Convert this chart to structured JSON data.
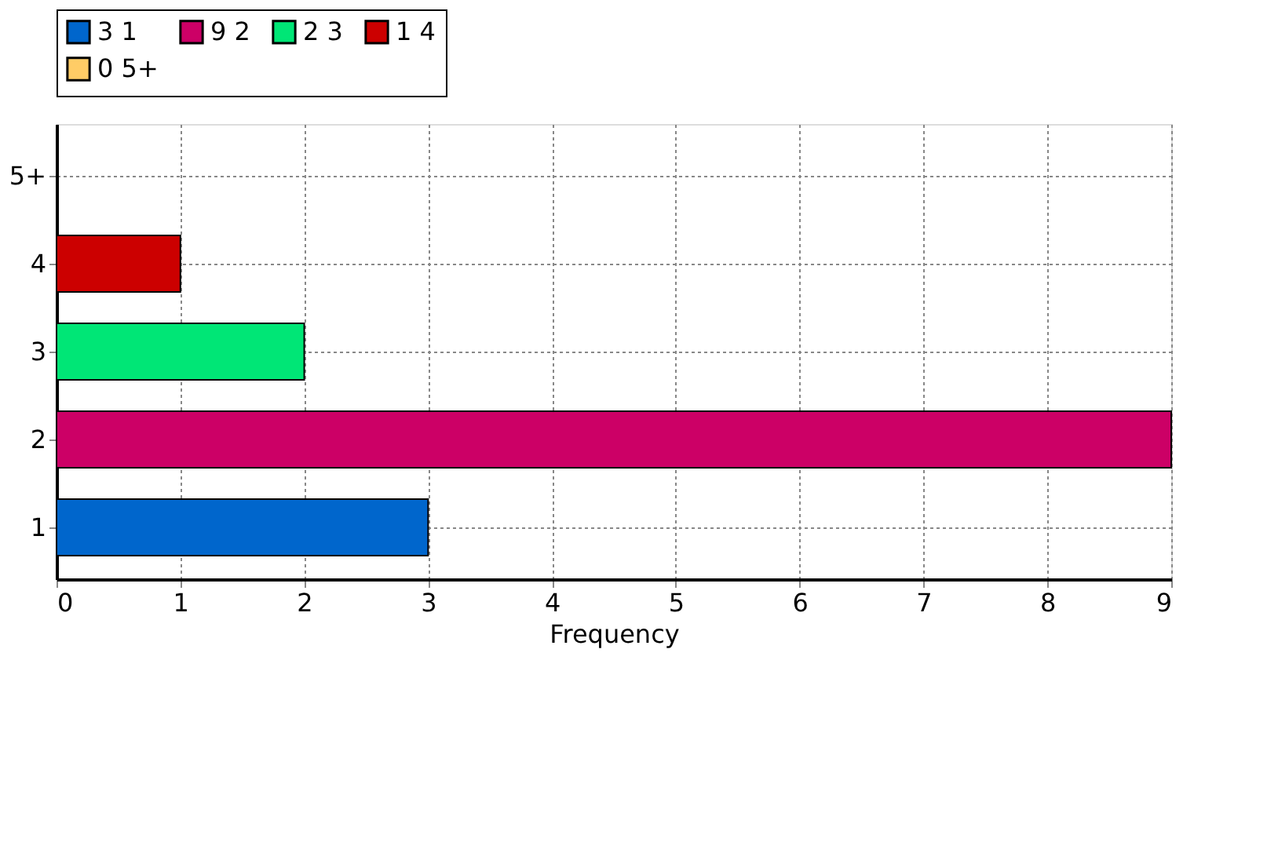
{
  "chart_data": {
    "type": "bar",
    "orientation": "horizontal",
    "categories": [
      "5+",
      "4",
      "3",
      "2",
      "1"
    ],
    "series": [
      {
        "name": "3 1",
        "color": "#0066cc",
        "values": [
          null,
          null,
          null,
          null,
          3
        ]
      },
      {
        "name": "9 2",
        "color": "#cc0066",
        "values": [
          null,
          null,
          null,
          9,
          null
        ]
      },
      {
        "name": "2 3",
        "color": "#00e676",
        "values": [
          null,
          null,
          2,
          null,
          null
        ]
      },
      {
        "name": "1 4",
        "color": "#cc0000",
        "values": [
          null,
          1,
          null,
          null,
          null
        ]
      },
      {
        "name": "0 5+",
        "color": "#ffcc66",
        "values": [
          0,
          null,
          null,
          null,
          null
        ]
      }
    ],
    "xlabel": "Frequency",
    "xlim": [
      0,
      9
    ],
    "xticks": [
      0,
      1,
      2,
      3,
      4,
      5,
      6,
      7,
      8,
      9
    ],
    "grid": true,
    "legend": "top"
  }
}
